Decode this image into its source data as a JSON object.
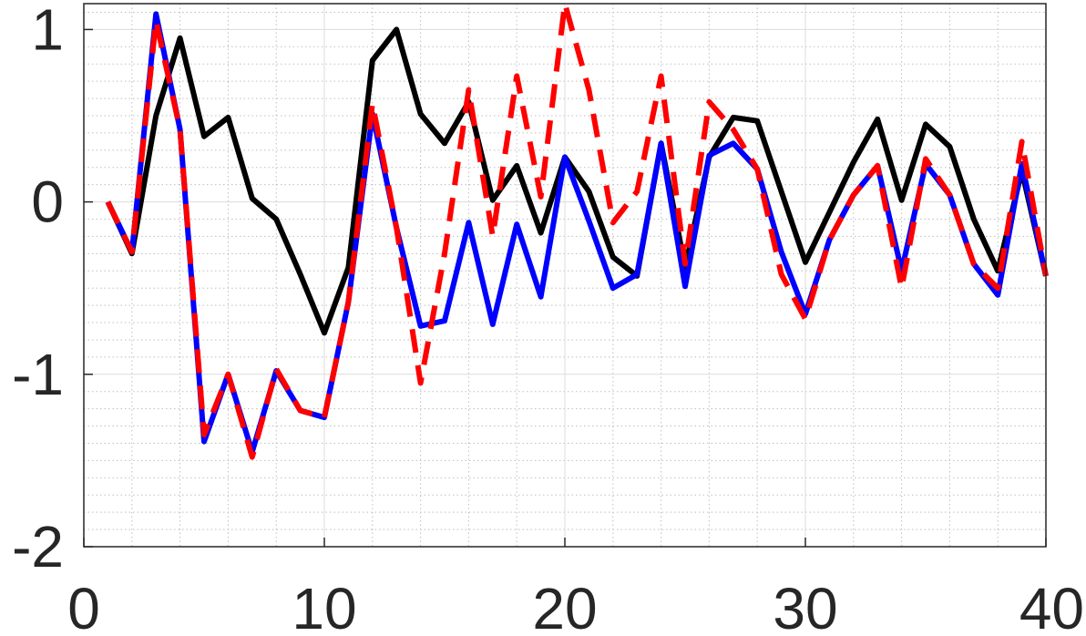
{
  "chart_data": {
    "type": "line",
    "title": "",
    "xlabel": "",
    "ylabel": "",
    "xlim": [
      0,
      40
    ],
    "ylim": [
      -2,
      1.15
    ],
    "x_ticks": [
      0,
      10,
      20,
      30,
      40
    ],
    "x_tick_labels": [
      "0",
      "10",
      "20",
      "30",
      "40"
    ],
    "y_ticks": [
      -2,
      -1,
      0,
      1
    ],
    "y_tick_labels": [
      "-2",
      "-1",
      "0",
      "1"
    ],
    "grid": true,
    "minor_grid": true,
    "x": [
      1,
      2,
      3,
      4,
      5,
      6,
      7,
      8,
      9,
      10,
      11,
      12,
      13,
      14,
      15,
      16,
      17,
      18,
      19,
      20,
      21,
      22,
      23,
      24,
      25,
      26,
      27,
      28,
      29,
      30,
      31,
      32,
      33,
      34,
      35,
      36,
      37,
      38,
      39,
      40
    ],
    "series": [
      {
        "color": "#000000",
        "style": "solid",
        "values": [
          0.0,
          -0.3,
          0.5,
          0.95,
          0.38,
          0.49,
          0.02,
          -0.1,
          -0.42,
          -0.76,
          -0.38,
          0.82,
          1.0,
          0.51,
          0.34,
          0.58,
          0.01,
          0.21,
          -0.18,
          0.26,
          0.06,
          -0.32,
          -0.43,
          0.34,
          -0.38,
          0.26,
          0.49,
          0.47,
          0.06,
          -0.35,
          -0.06,
          0.23,
          0.48,
          0.01,
          0.45,
          0.32,
          -0.1,
          -0.4,
          0.18,
          -0.43
        ]
      },
      {
        "color": "#0000ff",
        "style": "solid",
        "values": [
          0.0,
          -0.29,
          1.09,
          0.42,
          -1.39,
          -1.0,
          -1.45,
          -0.98,
          -1.21,
          -1.25,
          -0.58,
          0.51,
          -0.15,
          -0.72,
          -0.69,
          -0.12,
          -0.71,
          -0.13,
          -0.55,
          0.26,
          -0.11,
          -0.5,
          -0.42,
          0.34,
          -0.49,
          0.27,
          0.34,
          0.19,
          -0.29,
          -0.65,
          -0.22,
          0.04,
          0.21,
          -0.4,
          0.22,
          0.04,
          -0.36,
          -0.54,
          0.22,
          -0.43
        ]
      },
      {
        "color": "#ff0000",
        "style": "dashed",
        "values": [
          0.0,
          -0.29,
          1.05,
          0.42,
          -1.35,
          -1.0,
          -1.48,
          -0.97,
          -1.21,
          -1.25,
          -0.58,
          0.57,
          -0.15,
          -1.05,
          -0.3,
          0.65,
          -0.2,
          0.73,
          0.03,
          1.15,
          0.65,
          -0.12,
          0.06,
          0.73,
          -0.36,
          0.58,
          0.42,
          0.19,
          -0.42,
          -0.68,
          -0.22,
          0.04,
          0.21,
          -0.5,
          0.25,
          0.04,
          -0.36,
          -0.5,
          0.35,
          -0.43
        ]
      }
    ]
  }
}
